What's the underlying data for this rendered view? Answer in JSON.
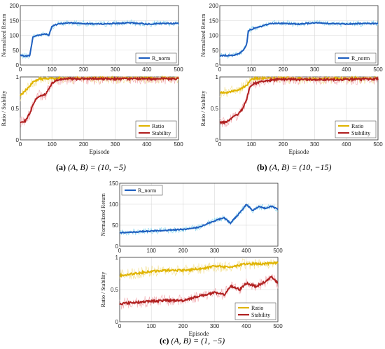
{
  "captions": [
    {
      "letter": "(a)",
      "eq": "(A, B) = (10, −5)"
    },
    {
      "letter": "(b)",
      "eq": "(A, B) = (10, −15)"
    },
    {
      "letter": "(c)",
      "eq": "(A, B) = (1, −5)"
    }
  ],
  "colors": {
    "r_norm": "#1f5fbf",
    "r_norm_light": "#7fd3ee",
    "ratio": "#e0b400",
    "ratio_light": "#f2df8a",
    "stability": "#b02020",
    "stability_light": "#f0a0a8",
    "grid": "#d8d8d8"
  },
  "chart_data": [
    {
      "panel": "a",
      "type": "line",
      "ylabel": "Normalized Return",
      "xlim": [
        0,
        500
      ],
      "ylim": [
        0,
        200
      ],
      "xticks": [
        "0",
        "100",
        "200",
        "300",
        "400",
        "500"
      ],
      "yticks": [
        "0",
        "50",
        "100",
        "150",
        "200"
      ],
      "legend": "bottom-right",
      "series": [
        {
          "name": "R_norm",
          "x": [
            0,
            20,
            30,
            40,
            55,
            80,
            90,
            100,
            120,
            150,
            200,
            250,
            300,
            350,
            400,
            450,
            500
          ],
          "y": [
            32,
            30,
            32,
            95,
            100,
            105,
            100,
            130,
            138,
            142,
            140,
            138,
            140,
            142,
            138,
            140,
            140
          ]
        }
      ]
    },
    {
      "panel": "a",
      "type": "line",
      "ylabel": "Ratio / Stability",
      "xlabel": "Episode",
      "xlim": [
        0,
        500
      ],
      "ylim": [
        0,
        1
      ],
      "xticks": [
        "0",
        "100",
        "200",
        "300",
        "400",
        "500"
      ],
      "yticks": [
        "0",
        "0.5",
        "1"
      ],
      "legend": "bottom-right",
      "series": [
        {
          "name": "Ratio",
          "x": [
            0,
            20,
            40,
            60,
            80,
            100,
            150,
            200,
            300,
            400,
            500
          ],
          "y": [
            0.7,
            0.8,
            0.92,
            0.97,
            0.97,
            0.98,
            0.98,
            0.98,
            0.98,
            0.98,
            0.98
          ]
        },
        {
          "name": "Stability",
          "x": [
            0,
            15,
            30,
            45,
            60,
            80,
            100,
            120,
            150,
            200,
            300,
            400,
            500
          ],
          "y": [
            0.28,
            0.3,
            0.42,
            0.62,
            0.7,
            0.72,
            0.9,
            0.96,
            0.97,
            0.97,
            0.97,
            0.97,
            0.97
          ]
        }
      ]
    },
    {
      "panel": "b",
      "type": "line",
      "ylabel": "Normalized Return",
      "xlim": [
        0,
        500
      ],
      "ylim": [
        0,
        200
      ],
      "xticks": [
        "0",
        "100",
        "200",
        "300",
        "400",
        "500"
      ],
      "yticks": [
        "0",
        "50",
        "100",
        "150",
        "200"
      ],
      "legend": "bottom-right",
      "series": [
        {
          "name": "R_norm",
          "x": [
            0,
            40,
            60,
            75,
            85,
            90,
            100,
            110,
            130,
            160,
            200,
            250,
            300,
            350,
            400,
            450,
            500
          ],
          "y": [
            32,
            32,
            38,
            50,
            70,
            115,
            120,
            125,
            130,
            140,
            140,
            138,
            142,
            140,
            138,
            140,
            140
          ]
        }
      ]
    },
    {
      "panel": "b",
      "type": "line",
      "ylabel": "Ratio / Stability",
      "xlabel": "Episode",
      "xlim": [
        0,
        500
      ],
      "ylim": [
        0,
        1
      ],
      "xticks": [
        "0",
        "100",
        "200",
        "300",
        "400",
        "500"
      ],
      "yticks": [
        "0",
        "0.5",
        "1"
      ],
      "legend": "bottom-right",
      "series": [
        {
          "name": "Ratio",
          "x": [
            0,
            30,
            60,
            80,
            90,
            100,
            150,
            200,
            300,
            400,
            500
          ],
          "y": [
            0.75,
            0.76,
            0.8,
            0.85,
            0.9,
            0.97,
            0.98,
            0.98,
            0.97,
            0.98,
            0.98
          ]
        },
        {
          "name": "Stability",
          "x": [
            0,
            20,
            40,
            55,
            70,
            85,
            95,
            110,
            130,
            160,
            200,
            300,
            400,
            500
          ],
          "y": [
            0.28,
            0.28,
            0.35,
            0.4,
            0.48,
            0.65,
            0.85,
            0.9,
            0.92,
            0.95,
            0.96,
            0.96,
            0.96,
            0.97
          ]
        }
      ]
    },
    {
      "panel": "c",
      "type": "line",
      "ylabel": "Normalized Return",
      "xlim": [
        0,
        500
      ],
      "ylim": [
        0,
        150
      ],
      "xticks": [
        "0",
        "100",
        "200",
        "300",
        "400",
        "500"
      ],
      "yticks": [
        "0",
        "50",
        "100",
        "150"
      ],
      "legend": "top-left",
      "series": [
        {
          "name": "R_norm",
          "x": [
            0,
            50,
            100,
            150,
            200,
            250,
            280,
            300,
            330,
            350,
            380,
            400,
            420,
            440,
            460,
            480,
            500
          ],
          "y": [
            32,
            34,
            36,
            38,
            40,
            45,
            55,
            60,
            68,
            55,
            80,
            100,
            85,
            95,
            90,
            95,
            88
          ]
        }
      ]
    },
    {
      "panel": "c",
      "type": "line",
      "ylabel": "Ratio / Stability",
      "xlabel": "Episode",
      "xlim": [
        0,
        500
      ],
      "ylim": [
        0,
        1
      ],
      "xticks": [
        "0",
        "100",
        "200",
        "300",
        "400",
        "500"
      ],
      "yticks": [
        "0",
        "0.5",
        "1"
      ],
      "legend": "bottom-right",
      "series": [
        {
          "name": "Ratio",
          "x": [
            0,
            50,
            100,
            150,
            200,
            250,
            300,
            350,
            400,
            450,
            500
          ],
          "y": [
            0.72,
            0.75,
            0.78,
            0.8,
            0.8,
            0.82,
            0.86,
            0.85,
            0.9,
            0.9,
            0.92
          ]
        },
        {
          "name": "Stability",
          "x": [
            0,
            50,
            100,
            150,
            200,
            250,
            300,
            330,
            350,
            380,
            400,
            430,
            460,
            480,
            500
          ],
          "y": [
            0.28,
            0.3,
            0.32,
            0.33,
            0.33,
            0.4,
            0.45,
            0.42,
            0.55,
            0.5,
            0.6,
            0.55,
            0.62,
            0.7,
            0.6
          ]
        }
      ]
    }
  ]
}
